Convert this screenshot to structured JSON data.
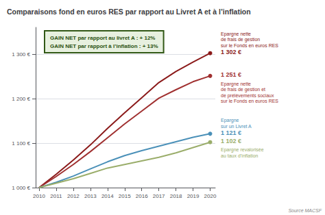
{
  "chart_data": {
    "type": "line",
    "title": "Comparaisons fond en euros RES par rapport au Livret A et à l’inflation",
    "x": [
      2010,
      2011,
      2012,
      2013,
      2014,
      2015,
      2016,
      2017,
      2018,
      2019,
      2020
    ],
    "xlim": [
      2009.8,
      2020.3
    ],
    "xticks": [
      2010,
      2011,
      2012,
      2013,
      2014,
      2015,
      2016,
      2017,
      2018,
      2019,
      2020
    ],
    "ylim": [
      1000,
      1360
    ],
    "yticks": [
      {
        "value": 1000,
        "label": "1 000 €"
      },
      {
        "value": 1100,
        "label": "1 100 €"
      },
      {
        "value": 1200,
        "label": "1 200 €"
      },
      {
        "value": 1300,
        "label": "1 300 €"
      }
    ],
    "grid": true,
    "series": [
      {
        "name": "Epargne nette\nde frais de gestion\nsur le Fonds en euros RES",
        "color": "#8B1A1A",
        "values": [
          1000,
          1030,
          1062,
          1096,
          1133,
          1168,
          1202,
          1236,
          1261,
          1282,
          1302
        ],
        "end_label": "1 302 €"
      },
      {
        "name": "Epargne nette\nde frais de gestion et\nde prélèvements sociaux\nsur le Fonds en euros RES",
        "color": "#A03030",
        "values": [
          1000,
          1025,
          1052,
          1081,
          1112,
          1143,
          1172,
          1201,
          1220,
          1238,
          1251
        ],
        "end_label": "1 251 €"
      },
      {
        "name": "Epargne\nsur un Livret A",
        "color": "#4A90B8",
        "values": [
          1000,
          1012,
          1026,
          1042,
          1058,
          1072,
          1083,
          1093,
          1103,
          1113,
          1121
        ],
        "end_label": "1 121 €"
      },
      {
        "name": "Epargne revalorisée\nau taux d’inflation",
        "color": "#9AAD6A",
        "values": [
          1000,
          1010,
          1020,
          1032,
          1044,
          1052,
          1060,
          1068,
          1078,
          1090,
          1102
        ],
        "end_label": "1 102 €"
      }
    ],
    "annotations": [
      {
        "text": "GAIN NET par rapport au livret A : + 12%\nGAIN NET par rapport à l’inflation : + 13%",
        "color": "#2A5010"
      }
    ],
    "source": "Source MACSF"
  }
}
